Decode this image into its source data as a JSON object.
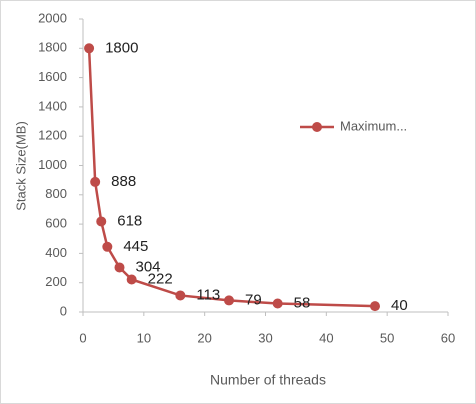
{
  "chart_data": {
    "type": "line",
    "x_label": "Number of threads",
    "y_label": "Stack Size(MB)",
    "xlim": [
      0,
      60
    ],
    "xticks": [
      0,
      10,
      20,
      30,
      40,
      50,
      60
    ],
    "ylim": [
      0,
      2000
    ],
    "yticks": [
      0,
      200,
      400,
      600,
      800,
      1000,
      1200,
      1400,
      1600,
      1800,
      2000
    ],
    "grid": false,
    "legend": "right",
    "series": [
      {
        "name": "Maximum...",
        "color": "#be4b48",
        "x": [
          1,
          2,
          3,
          4,
          6,
          8,
          16,
          24,
          32,
          48
        ],
        "values": [
          1800,
          888,
          618,
          445,
          304,
          222,
          113,
          79,
          58,
          40
        ]
      }
    ]
  }
}
